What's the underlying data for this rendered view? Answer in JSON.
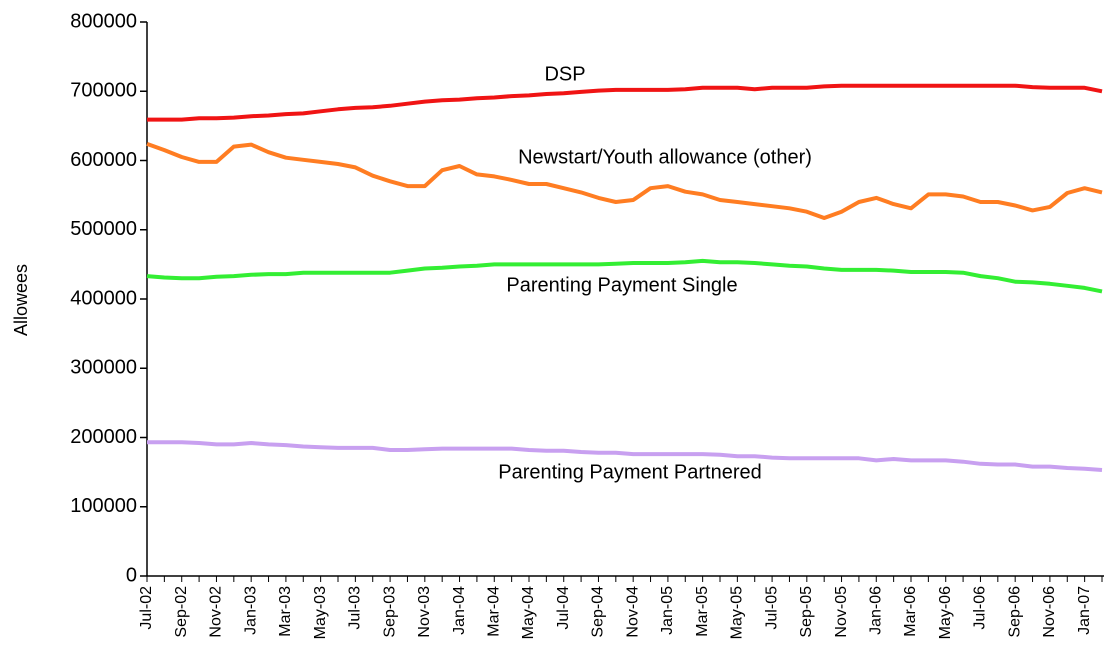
{
  "chart_data": {
    "type": "line",
    "y_label": "Allowees",
    "categories": [
      "Jul-02",
      null,
      "Sep-02",
      null,
      "Nov-02",
      null,
      "Jan-03",
      null,
      "Mar-03",
      null,
      "May-03",
      null,
      "Jul-03",
      null,
      "Sep-03",
      null,
      "Nov-03",
      null,
      "Jan-04",
      null,
      "Mar-04",
      null,
      "May-04",
      null,
      "Jul-04",
      null,
      "Sep-04",
      null,
      "Nov-04",
      null,
      "Jan-05",
      null,
      "Mar-05",
      null,
      "May-05",
      null,
      "Jul-05",
      null,
      "Sep-05",
      null,
      "Nov-05",
      null,
      "Jan-06",
      null,
      "Mar-06",
      null,
      "May-06",
      null,
      "Jul-06",
      null,
      "Sep-06",
      null,
      "Nov-06",
      null,
      "Jan-07",
      null
    ],
    "series": [
      {
        "name": "DSP",
        "color": "#f01414",
        "values": [
          659000,
          659000,
          659000,
          661000,
          661000,
          662000,
          664000,
          665000,
          667000,
          668000,
          671000,
          674000,
          676000,
          677000,
          679000,
          682000,
          685000,
          687000,
          688000,
          690000,
          691000,
          693000,
          694000,
          696000,
          697000,
          699000,
          701000,
          702000,
          702000,
          702000,
          702000,
          703000,
          705000,
          705000,
          705000,
          703000,
          705000,
          705000,
          705000,
          707000,
          708000,
          708000,
          708000,
          708000,
          708000,
          708000,
          708000,
          708000,
          708000,
          708000,
          708000,
          706000,
          705000,
          705000,
          705000,
          700000
        ]
      },
      {
        "name": "Newstart/Youth allowance (other)",
        "color": "#ff7d22",
        "values": [
          624000,
          615000,
          605000,
          598000,
          598000,
          620000,
          623000,
          612000,
          604000,
          601000,
          598000,
          595000,
          590000,
          578000,
          570000,
          563000,
          563000,
          586000,
          592000,
          580000,
          577000,
          572000,
          566000,
          566000,
          560000,
          554000,
          546000,
          540000,
          543000,
          560000,
          563000,
          555000,
          551000,
          543000,
          540000,
          537000,
          534000,
          531000,
          526000,
          517000,
          526000,
          540000,
          546000,
          537000,
          531000,
          551000,
          551000,
          548000,
          540000,
          540000,
          535000,
          528000,
          533000,
          553000,
          560000,
          554000
        ]
      },
      {
        "name": "Parenting Payment Single",
        "color": "#33ee33",
        "values": [
          433000,
          431000,
          430000,
          430000,
          432000,
          433000,
          435000,
          436000,
          436000,
          438000,
          438000,
          438000,
          438000,
          438000,
          438000,
          441000,
          444000,
          445000,
          447000,
          448000,
          450000,
          450000,
          450000,
          450000,
          450000,
          450000,
          450000,
          451000,
          452000,
          452000,
          452000,
          453000,
          455000,
          453000,
          453000,
          452000,
          450000,
          448000,
          447000,
          444000,
          442000,
          442000,
          442000,
          441000,
          439000,
          439000,
          439000,
          438000,
          433000,
          430000,
          425000,
          424000,
          422000,
          419000,
          416000,
          411000
        ]
      },
      {
        "name": "Parenting Payment Partnered",
        "color": "#c8a0f0",
        "values": [
          193000,
          193000,
          193000,
          192000,
          190000,
          190000,
          192000,
          190000,
          189000,
          187000,
          186000,
          185000,
          185000,
          185000,
          182000,
          182000,
          183000,
          184000,
          184000,
          184000,
          184000,
          184000,
          182000,
          181000,
          181000,
          179000,
          178000,
          178000,
          176000,
          176000,
          176000,
          176000,
          176000,
          175000,
          173000,
          173000,
          171000,
          170000,
          170000,
          170000,
          170000,
          170000,
          167000,
          169000,
          167000,
          167000,
          167000,
          165000,
          162000,
          161000,
          161000,
          158000,
          158000,
          156000,
          155000,
          153000
        ]
      }
    ],
    "ylim": [
      0,
      800000
    ],
    "yticks": [
      0,
      100000,
      200000,
      300000,
      400000,
      500000,
      600000,
      700000,
      800000
    ]
  }
}
